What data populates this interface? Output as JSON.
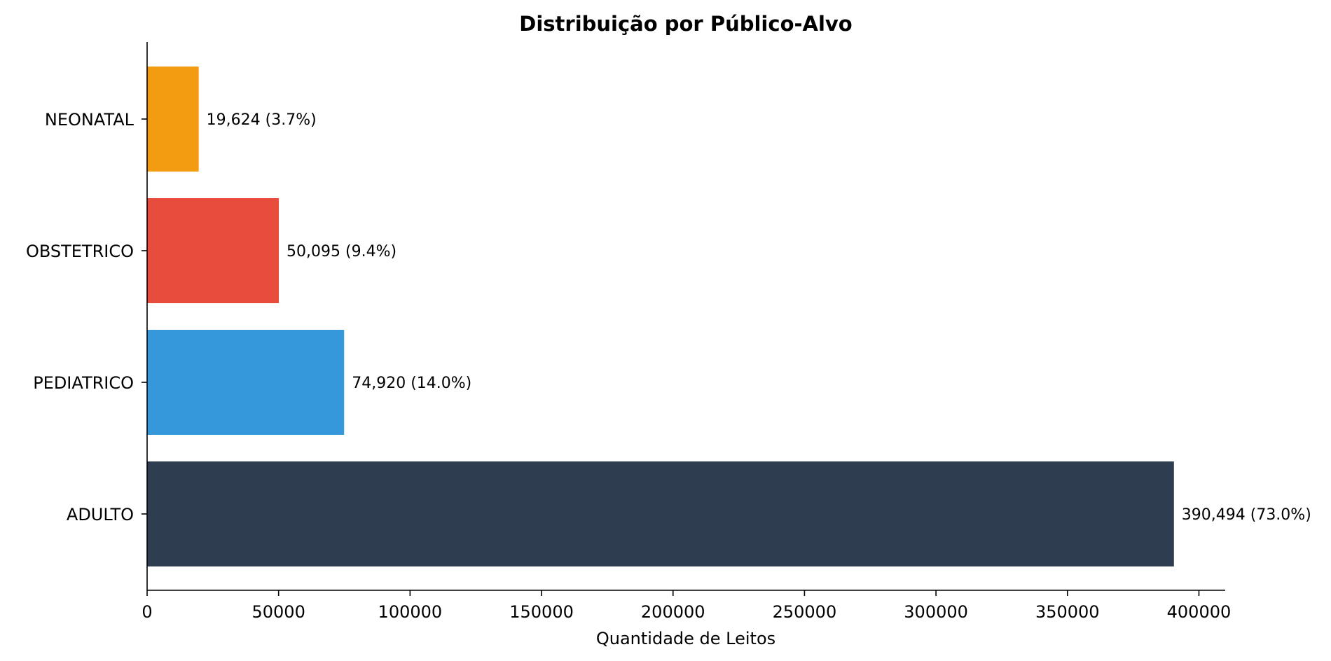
{
  "chart_data": {
    "type": "bar",
    "orientation": "horizontal",
    "title": "Distribuição por Público-Alvo",
    "xlabel": "Quantidade de Leitos",
    "ylabel": "",
    "xlim": [
      0,
      410000
    ],
    "x_ticks": [
      0,
      50000,
      100000,
      150000,
      200000,
      250000,
      300000,
      350000,
      400000
    ],
    "x_tick_labels": [
      "0",
      "50000",
      "100000",
      "150000",
      "200000",
      "250000",
      "300000",
      "350000",
      "400000"
    ],
    "categories": [
      "ADULTO",
      "PEDIATRICO",
      "OBSTETRICO",
      "NEONATAL"
    ],
    "values": [
      390494,
      74920,
      50095,
      19624
    ],
    "data_labels": [
      "390,494 (73.0%)",
      "74,920 (14.0%)",
      "50,095 (9.4%)",
      "19,624 (3.7%)"
    ],
    "colors": [
      "#2e3e50",
      "#3498db",
      "#e74c3c",
      "#f39c12"
    ],
    "grid": false,
    "legend": "none"
  }
}
